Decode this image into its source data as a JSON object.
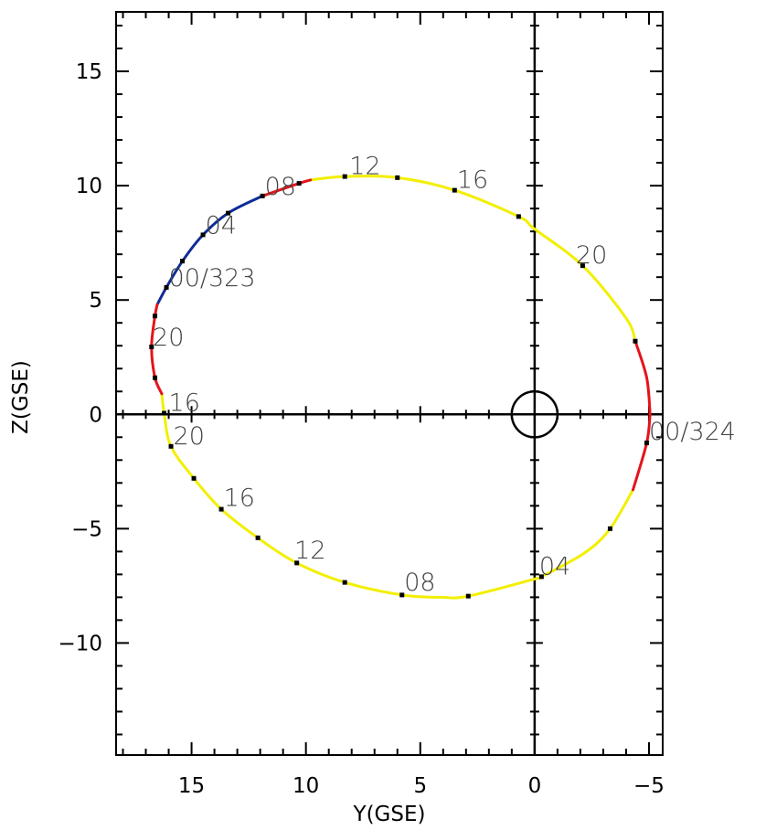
{
  "chart_data": {
    "type": "line",
    "title": "",
    "xlabel": "Y(GSE)",
    "ylabel": "Z(GSE)",
    "xlim": [
      18.3,
      -5.6
    ],
    "ylim": [
      -14.9,
      17.6
    ],
    "x_ticks": [
      15,
      10,
      5,
      0,
      -5
    ],
    "x_tick_labels": [
      "15",
      "10",
      "5",
      "0",
      "−5"
    ],
    "y_ticks": [
      15,
      10,
      5,
      0,
      -5,
      -10
    ],
    "y_tick_labels": [
      "15",
      "10",
      "5",
      "0",
      "−5",
      "−10"
    ],
    "grid": false,
    "legend": "none",
    "reference_lines": {
      "x": 0,
      "y": 0
    },
    "earth_marker": {
      "x": 0,
      "y": 0,
      "radius": 1
    },
    "colors": {
      "yellow": "#f2ef00",
      "red": "#e4141b",
      "blue": "#0f2c97",
      "axes": "#000000",
      "marker": "#000000"
    },
    "series": [
      {
        "color": "yellow",
        "points": [
          [
            16.3,
            0.9
          ],
          [
            16.2,
            0.05
          ],
          [
            15.9,
            -1.4
          ],
          [
            14.9,
            -2.8
          ],
          [
            13.7,
            -4.15
          ],
          [
            12.1,
            -5.4
          ],
          [
            10.4,
            -6.5
          ],
          [
            8.3,
            -7.35
          ],
          [
            5.8,
            -7.9
          ],
          [
            4.1,
            -8.0
          ],
          [
            2.9,
            -7.95
          ],
          [
            0.0,
            -7.2
          ],
          [
            -0.3,
            -7.1
          ],
          [
            -2.2,
            -6.05
          ],
          [
            -3.3,
            -5.0
          ],
          [
            -4.3,
            -3.3
          ]
        ]
      },
      {
        "color": "red",
        "points": [
          [
            -4.3,
            -3.3
          ],
          [
            -4.9,
            -1.25
          ],
          [
            -5.05,
            0.0
          ]
        ]
      },
      {
        "color": "red",
        "points": [
          [
            -5.05,
            0.0
          ],
          [
            -4.9,
            1.6
          ],
          [
            -4.4,
            3.2
          ]
        ]
      },
      {
        "color": "yellow",
        "points": [
          [
            -4.4,
            3.2
          ],
          [
            -4.0,
            4.2
          ],
          [
            -2.1,
            6.5
          ],
          [
            0.0,
            8.1
          ],
          [
            0.7,
            8.65
          ],
          [
            3.5,
            9.8
          ],
          [
            6.0,
            10.35
          ],
          [
            8.3,
            10.4
          ],
          [
            9.8,
            10.25
          ]
        ]
      },
      {
        "color": "red",
        "points": [
          [
            9.8,
            10.25
          ],
          [
            10.3,
            10.1
          ],
          [
            11.9,
            9.55
          ]
        ]
      },
      {
        "color": "blue",
        "points": [
          [
            11.9,
            9.55
          ],
          [
            13.4,
            8.8
          ],
          [
            14.5,
            7.85
          ],
          [
            15.4,
            6.7
          ],
          [
            16.1,
            5.55
          ],
          [
            16.5,
            4.8
          ]
        ]
      },
      {
        "color": "red",
        "points": [
          [
            16.5,
            4.8
          ],
          [
            16.6,
            4.3
          ],
          [
            16.75,
            2.95
          ],
          [
            16.6,
            1.6
          ],
          [
            16.3,
            0.9
          ]
        ]
      }
    ],
    "markers": [
      [
        16.2,
        0.05
      ],
      [
        15.9,
        -1.4
      ],
      [
        14.9,
        -2.8
      ],
      [
        13.7,
        -4.15
      ],
      [
        12.1,
        -5.4
      ],
      [
        10.4,
        -6.5
      ],
      [
        8.3,
        -7.35
      ],
      [
        5.8,
        -7.9
      ],
      [
        2.9,
        -7.95
      ],
      [
        -0.3,
        -7.1
      ],
      [
        -3.3,
        -5.0
      ],
      [
        -4.9,
        -1.25
      ],
      [
        -4.4,
        3.2
      ],
      [
        -2.1,
        6.5
      ],
      [
        0.7,
        8.65
      ],
      [
        3.5,
        9.8
      ],
      [
        6.0,
        10.35
      ],
      [
        8.3,
        10.4
      ],
      [
        10.3,
        10.1
      ],
      [
        11.9,
        9.55
      ],
      [
        13.4,
        8.8
      ],
      [
        14.5,
        7.85
      ],
      [
        15.4,
        6.7
      ],
      [
        16.1,
        5.55
      ],
      [
        16.6,
        4.3
      ],
      [
        16.75,
        2.95
      ],
      [
        16.6,
        1.6
      ]
    ],
    "annotations": [
      {
        "text": "16",
        "x": 16.0,
        "y": 0.15
      },
      {
        "text": "20",
        "x": 15.8,
        "y": -1.3
      },
      {
        "text": "16",
        "x": 13.6,
        "y": -4.0
      },
      {
        "text": "12",
        "x": 10.5,
        "y": -6.3
      },
      {
        "text": "08",
        "x": 5.7,
        "y": -7.7
      },
      {
        "text": "04",
        "x": -0.2,
        "y": -7.0
      },
      {
        "text": "00/324",
        "x": -5.0,
        "y": -1.1
      },
      {
        "text": "20",
        "x": -1.8,
        "y": 6.6
      },
      {
        "text": "16",
        "x": 3.4,
        "y": 9.9
      },
      {
        "text": "12",
        "x": 8.1,
        "y": 10.5
      },
      {
        "text": "08",
        "x": 11.8,
        "y": 9.6
      },
      {
        "text": "04",
        "x": 14.4,
        "y": 7.9
      },
      {
        "text": "00/323",
        "x": 16.0,
        "y": 5.6
      },
      {
        "text": "20",
        "x": 16.7,
        "y": 3.0
      }
    ]
  }
}
